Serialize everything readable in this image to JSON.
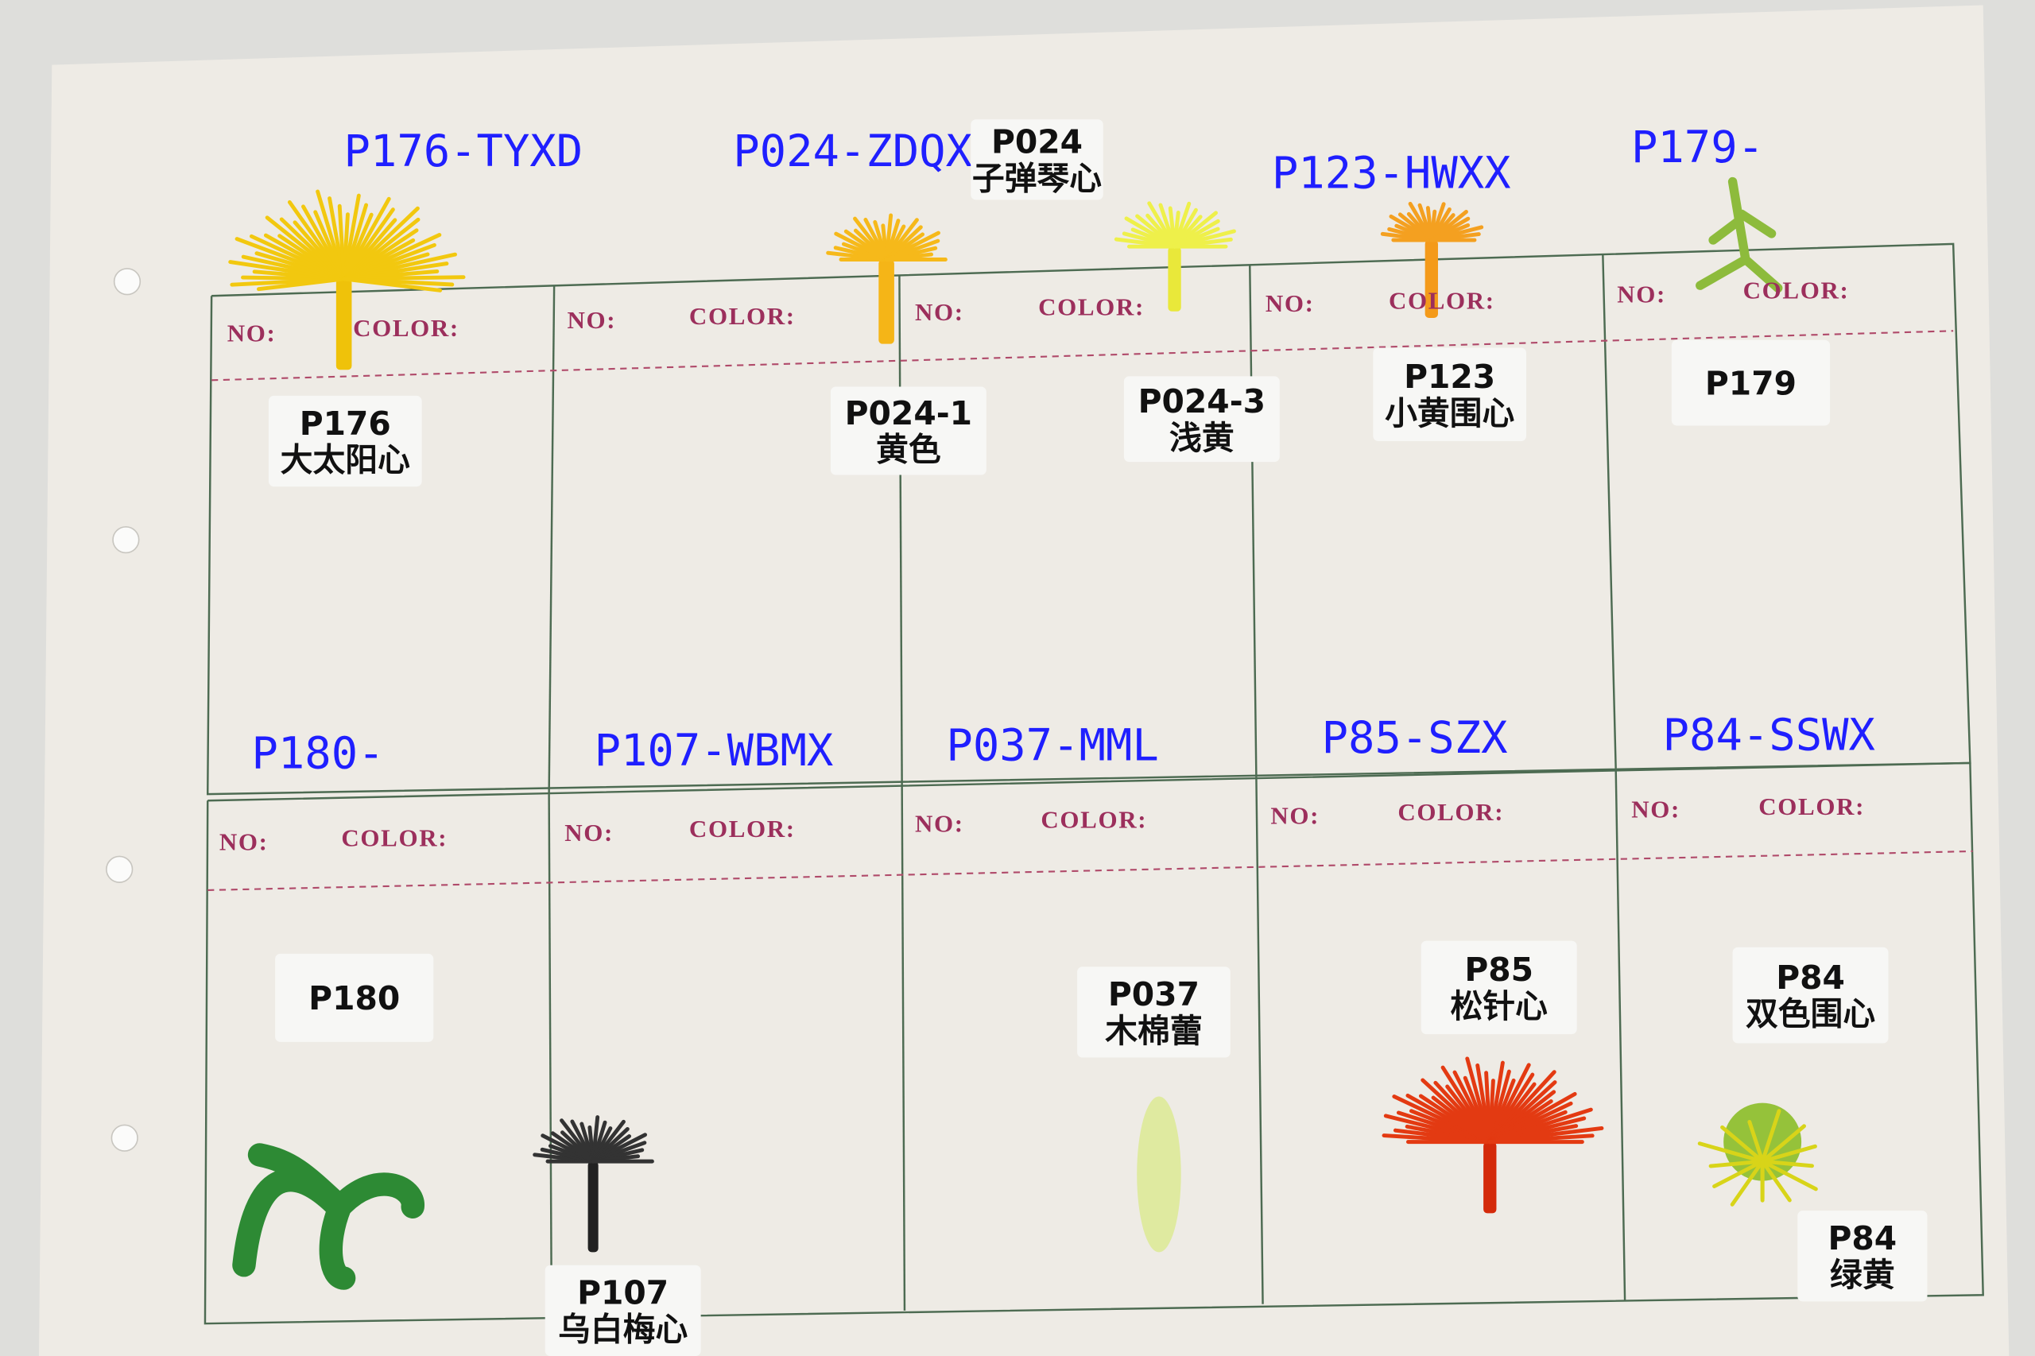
{
  "codes": [
    "P176-TYXD",
    "P024-ZDQX",
    "P123-HWXX",
    "P179-",
    "P180-",
    "P107-WBMX",
    "P037-MML",
    "P85-SZX",
    "P84-SSWX"
  ],
  "form_labels": {
    "no": "NO:",
    "color": "COLOR:"
  },
  "tags": [
    [
      "P176",
      "大太阳心"
    ],
    [
      "P024",
      "子弹琴心"
    ],
    [
      "P024-1",
      "黄色"
    ],
    [
      "P024-3",
      "浅黄"
    ],
    [
      "P123",
      "小黄围心"
    ],
    [
      "P179"
    ],
    [
      "P180"
    ],
    [
      "P107",
      "乌白梅心"
    ],
    [
      "P037",
      "木棉蕾"
    ],
    [
      "P85",
      "松针心"
    ],
    [
      "P84",
      "双色围心"
    ],
    [
      "P84",
      "绿黄"
    ]
  ]
}
